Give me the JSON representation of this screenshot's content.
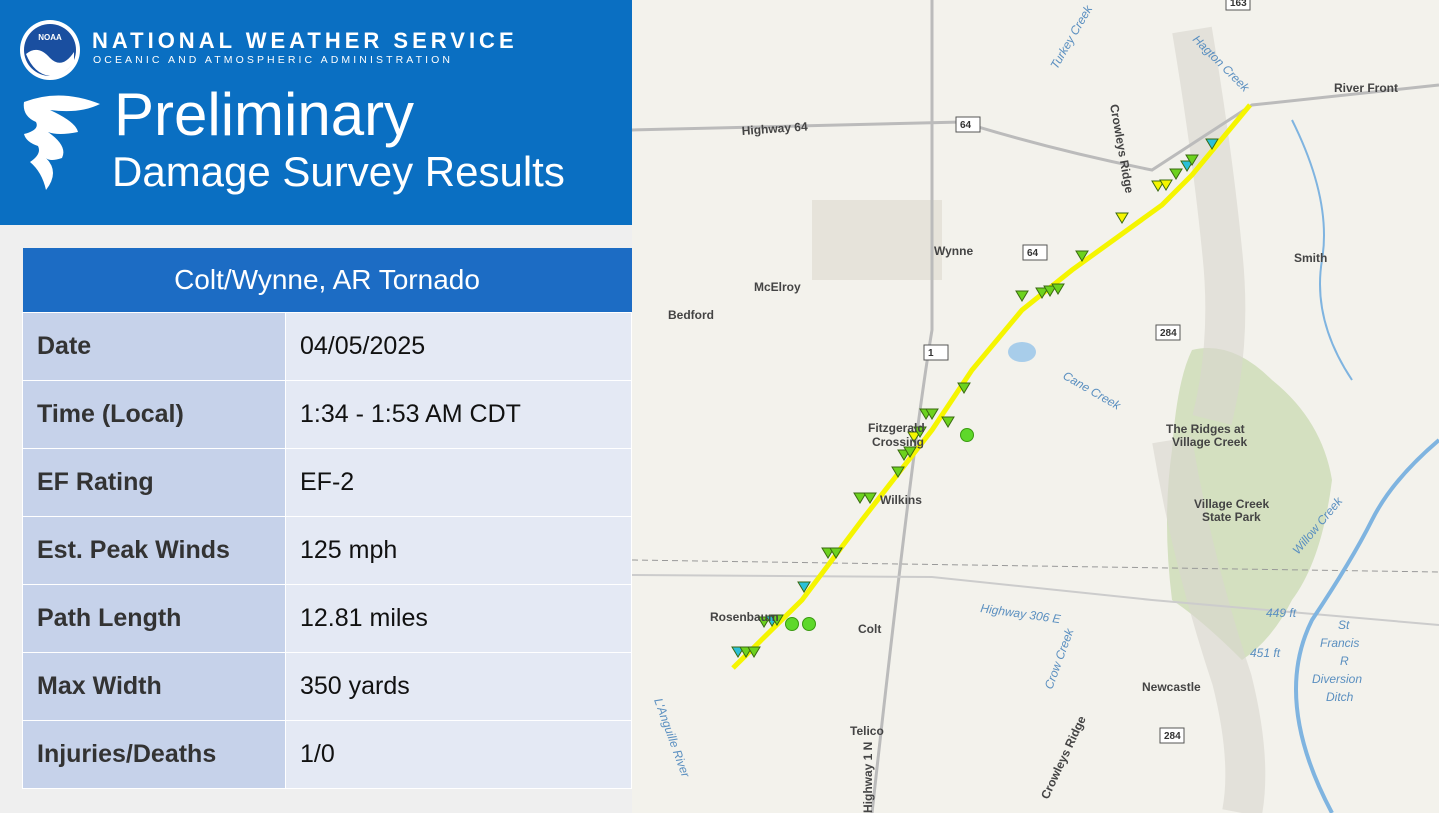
{
  "header": {
    "organization": "NATIONAL WEATHER SERVICE",
    "organization_sub": "OCEANIC AND ATMOSPHERIC ADMINISTRATION",
    "logo_text": "NOAA",
    "title": "Preliminary",
    "subtitle": "Damage Survey Results"
  },
  "table": {
    "title": "Colt/Wynne, AR Tornado",
    "rows": [
      [
        "Date",
        "04/05/2025"
      ],
      [
        "Time (Local)",
        "1:34 - 1:53 AM CDT"
      ],
      [
        "EF Rating",
        "EF-2"
      ],
      [
        "Est. Peak Winds",
        "125 mph"
      ],
      [
        "Path Length",
        "12.81 miles"
      ],
      [
        "Max Width",
        "350 yards"
      ],
      [
        "Injuries/Deaths",
        "1/0"
      ]
    ]
  },
  "map": {
    "labels": {
      "highway_64": "Highway 64",
      "shield_64a": "64",
      "shield_64b": "64",
      "shield_163": "163",
      "river_front": "River Front",
      "turkey_creek": "Turkey Creek",
      "hagton_creek": "Hagton Creek",
      "crowleys_ridge_n": "Crowleys Ridge",
      "wynne": "Wynne",
      "mcelroy": "McElroy",
      "bedford": "Bedford",
      "smith": "Smith",
      "shield_284a": "284",
      "shield_1": "1",
      "cane_creek": "Cane Creek",
      "ridges_1": "The Ridges at",
      "ridges_2": "Village Creek",
      "fitzgerald_1": "Fitzgerald",
      "fitzgerald_2": "Crossing",
      "wilkins": "Wilkins",
      "park_1": "Village Creek",
      "park_2": "State Park",
      "willow_creek": "Willow Creek",
      "rosenbaum": "Rosenbaum",
      "colt": "Colt",
      "highway_306": "Highway 306 E",
      "crow_creek": "Crow Creek",
      "elev_449": "449 ft",
      "elev_451": "451 ft",
      "st": "St",
      "francis": "Francis",
      "r": "R",
      "diversion": "Diversion",
      "ditch": "Ditch",
      "newcastle": "Newcastle",
      "crowleys_ridge_s": "Crowleys Ridge",
      "telico": "Telico",
      "shield_284b": "284",
      "highway_1n": "Highway 1 N",
      "languille": "L'Anguille River"
    }
  }
}
